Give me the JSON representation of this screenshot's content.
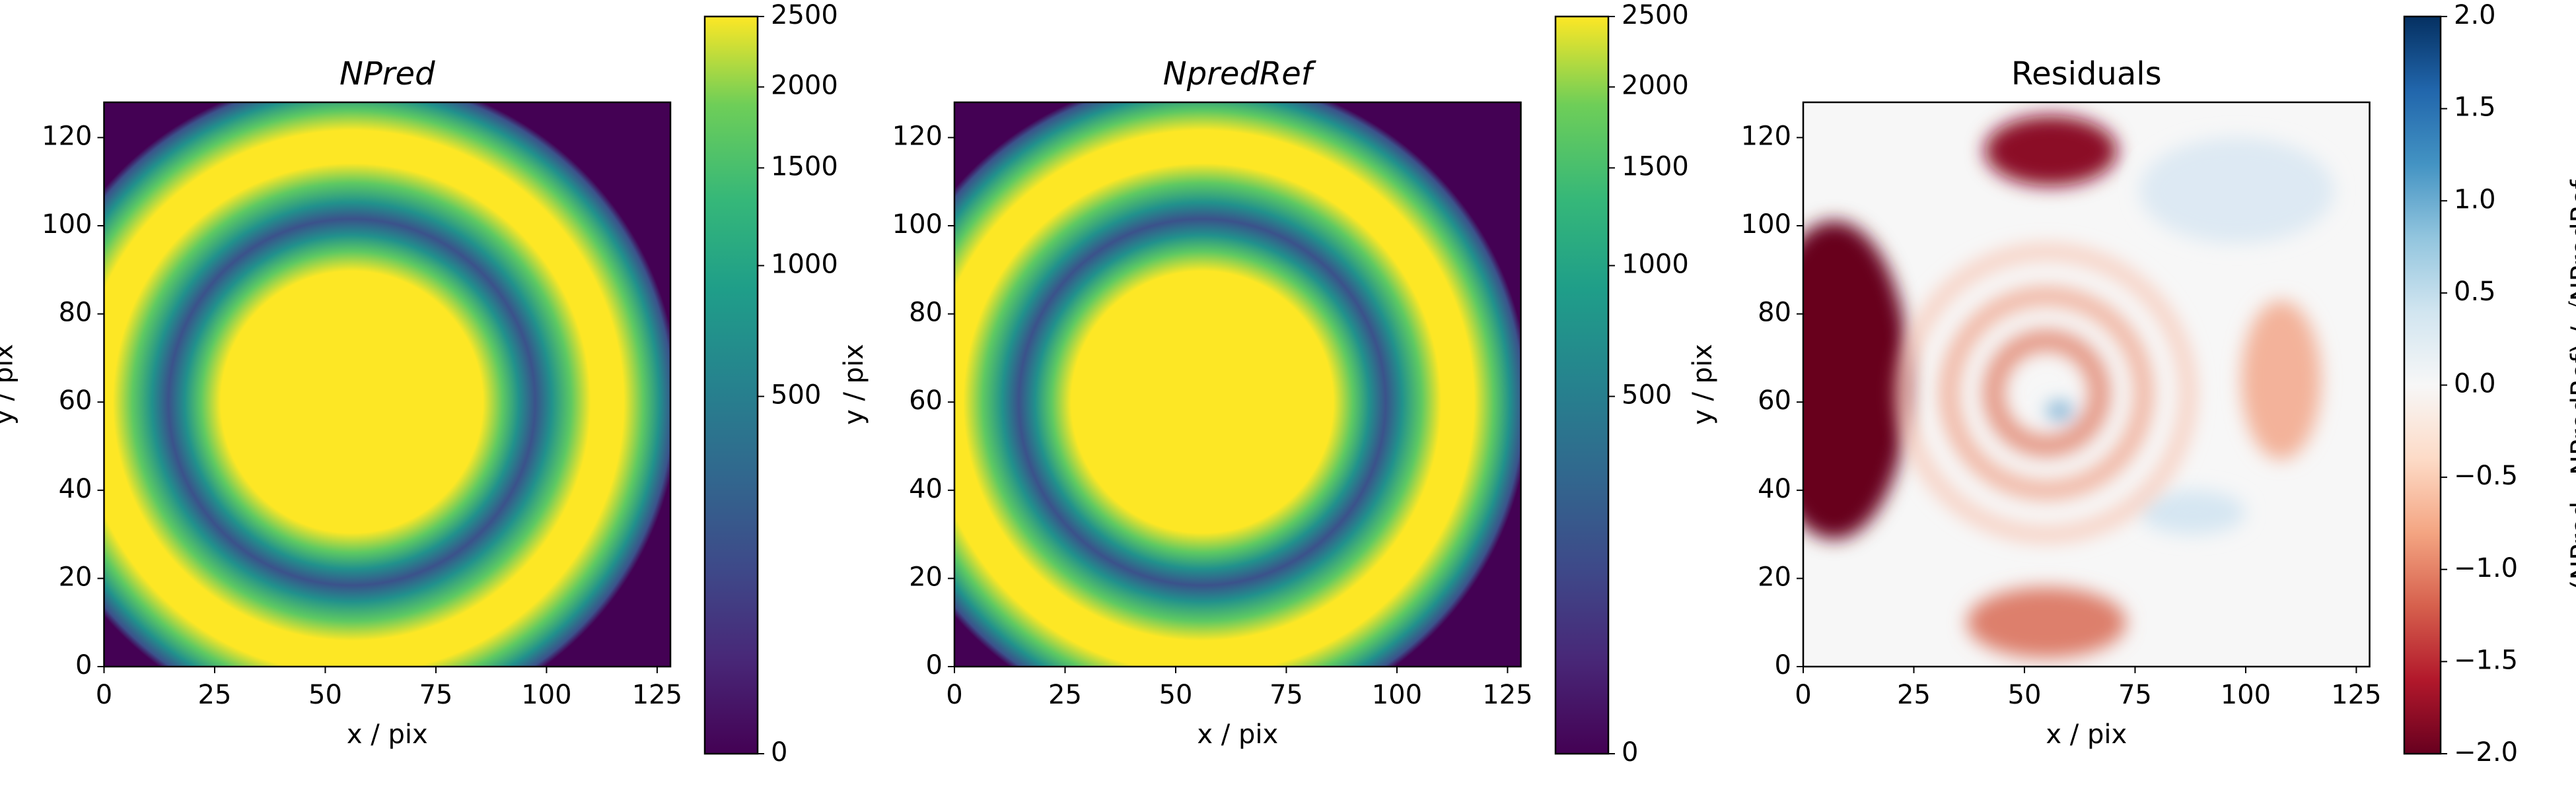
{
  "chart_data": [
    {
      "type": "image",
      "title": "NPred",
      "xlabel": "x / pix",
      "ylabel": "y / pix",
      "xlim": [
        0,
        128
      ],
      "ylim": [
        0,
        128
      ],
      "xticks": [
        0,
        25,
        50,
        75,
        100,
        125
      ],
      "yticks": [
        0,
        20,
        40,
        60,
        80,
        100,
        120
      ],
      "colormap": "viridis",
      "clim": [
        0,
        2500
      ],
      "cbar_gamma": 0.45,
      "cticks": [
        0,
        500,
        1000,
        1500,
        2000,
        2500
      ]
    },
    {
      "type": "image",
      "title": "NpredRef",
      "xlabel": "x / pix",
      "ylabel": "y / pix",
      "xlim": [
        0,
        128
      ],
      "ylim": [
        0,
        128
      ],
      "xticks": [
        0,
        25,
        50,
        75,
        100,
        125
      ],
      "yticks": [
        0,
        20,
        40,
        60,
        80,
        100,
        120
      ],
      "colormap": "viridis",
      "clim": [
        0,
        2500
      ],
      "cbar_gamma": 0.45,
      "cticks": [
        0,
        500,
        1000,
        1500,
        2000,
        2500
      ]
    },
    {
      "type": "image",
      "title": "Residuals",
      "xlabel": "x / pix",
      "ylabel": "y / pix",
      "xlim": [
        0,
        128
      ],
      "ylim": [
        0,
        128
      ],
      "xticks": [
        0,
        25,
        50,
        75,
        100,
        125
      ],
      "yticks": [
        0,
        20,
        40,
        60,
        80,
        100,
        120
      ],
      "colormap": "RdBu",
      "clim": [
        -2,
        2
      ],
      "cbar_gamma": 1,
      "cticks": [
        {
          "value": -2,
          "label": "−2.0"
        },
        {
          "value": -1.5,
          "label": "−1.5"
        },
        {
          "value": -1,
          "label": "−1.0"
        },
        {
          "value": -0.5,
          "label": "−0.5"
        },
        {
          "value": 0,
          "label": "0.0"
        },
        {
          "value": 0.5,
          "label": "0.5"
        },
        {
          "value": 1,
          "label": "1.0"
        },
        {
          "value": 1.5,
          "label": "1.5"
        },
        {
          "value": 2,
          "label": "2.0"
        }
      ],
      "cbar_label": "(NPred - NPredRef) / √NPredRef"
    }
  ]
}
